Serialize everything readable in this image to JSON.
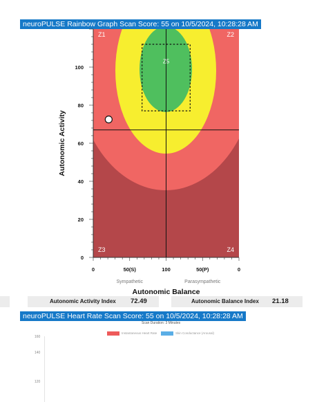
{
  "rainbow": {
    "header": "neuroPULSE Rainbow Graph Scan Score: 55 on 10/5/2024, 10:28:28 AM",
    "zones": [
      "Z1",
      "Z2",
      "Z3",
      "Z4",
      "Z5"
    ],
    "colors": {
      "dark_red": "#b4474a",
      "red": "#f06663",
      "yellow": "#f7ee2f",
      "green": "#4fbf5e",
      "header_blue": "#1679c8"
    }
  },
  "chart_data": {
    "type": "scatter",
    "xlabel": "Autonomic Balance",
    "ylabel": "Autonomic Activity",
    "x_ticks": [
      "0",
      "50(S)",
      "100",
      "50(P)",
      "0"
    ],
    "y_ticks": [
      "0",
      "20",
      "40",
      "60",
      "80",
      "100"
    ],
    "x_sublabels": [
      "Sympathetic",
      "Parasympathetic"
    ],
    "xlim": [
      0,
      200
    ],
    "ylim": [
      0,
      120
    ],
    "point": {
      "activity": 72.49,
      "balance": 21.18
    },
    "crosshair": {
      "x": 100,
      "y": 67
    },
    "target_box": {
      "x": [
        67,
        133
      ],
      "y": [
        77,
        112
      ]
    },
    "grid": false
  },
  "indices": {
    "activity_label": "Autonomic Activity Index",
    "activity_value": "72.49",
    "balance_label": "Autonomic Balance Index",
    "balance_value": "21.18"
  },
  "heart_rate": {
    "header": "neuroPULSE Heart Rate Scan Score: 55 on 10/5/2024, 10:28:28 AM",
    "duration": "Scan Duration: 3 Minutes",
    "legend": [
      {
        "label": "Instantaneous Heart Rate",
        "color": "#ee5a5a"
      },
      {
        "label": "Skin Conductance (Arousal)",
        "color": "#5aaee6"
      }
    ],
    "y_ticks": [
      "160",
      "140",
      "120"
    ]
  }
}
